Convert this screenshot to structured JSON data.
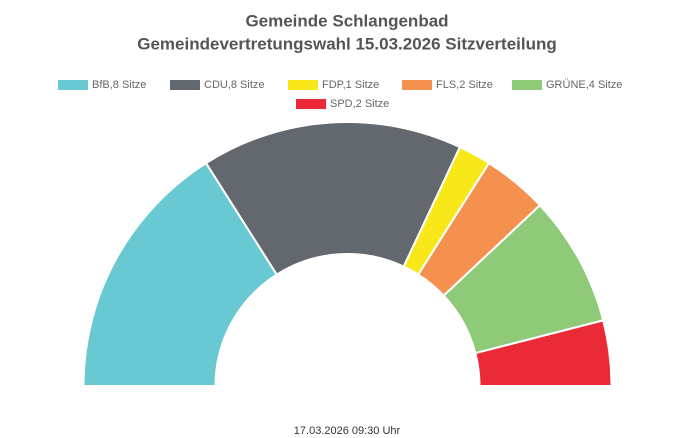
{
  "chart_data": {
    "type": "half_doughnut",
    "title": [
      "Gemeinde Schlangenbad",
      "Gemeindevertretungswahl 15.03.2026 Sitzverteilung"
    ],
    "categories": [
      "BfB,8 Sitze",
      "CDU,8 Sitze",
      "FDP,1 Sitze",
      "FLS,2 Sitze",
      "GRÜNE,4 Sitze",
      "SPD,2 Sitze"
    ],
    "values": [
      8,
      8,
      1,
      2,
      4,
      2
    ],
    "colors": [
      "#68c9d3",
      "#63676e",
      "#f8e81a",
      "#f4914f",
      "#8fca79",
      "#eb2a38"
    ],
    "footer": "17.03.2026 09:30 Uhr"
  }
}
